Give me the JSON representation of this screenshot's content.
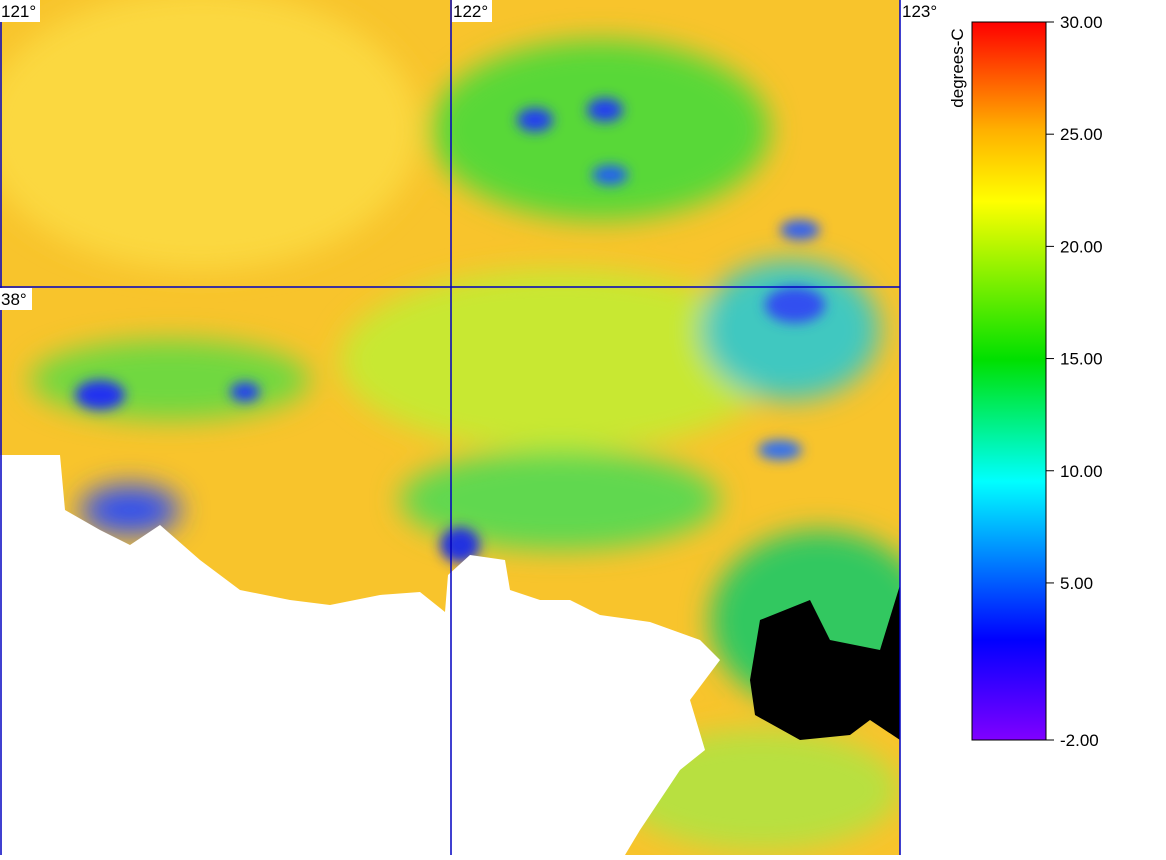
{
  "map": {
    "lon_labels": [
      "121°",
      "122°",
      "123°"
    ],
    "lat_labels": [
      "38°"
    ]
  },
  "colorbar": {
    "label": "degrees-C",
    "lim": [
      -2,
      30
    ],
    "ticks": [
      {
        "value": 30,
        "label": "30.00"
      },
      {
        "value": 25,
        "label": "25.00"
      },
      {
        "value": 20,
        "label": "20.00"
      },
      {
        "value": 15,
        "label": "15.00"
      },
      {
        "value": 10,
        "label": "10.00"
      },
      {
        "value": 5,
        "label": "5.00"
      },
      {
        "value": -2,
        "label": "-2.00"
      }
    ]
  }
}
